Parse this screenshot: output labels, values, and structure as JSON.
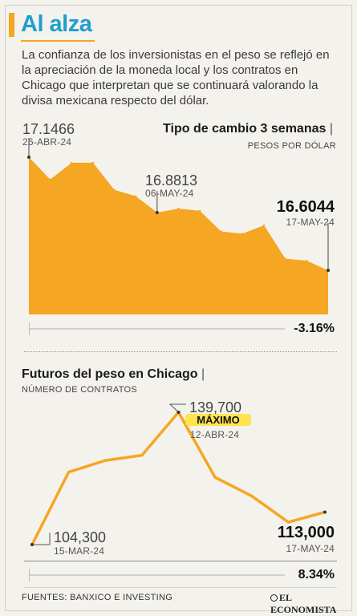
{
  "headline": "Al alza",
  "intro": "La confianza de los inversionistas en el peso se reflejó en la apreciación de la moneda local y los contratos en Chicago que interpretan que se continuará valorando la divisa mexicana respecto del dólar.",
  "colors": {
    "accent": "#f5a623",
    "headline": "#1e9fd0",
    "area": "#f5a623",
    "line": "#f5a623",
    "badge": "#ffe44d"
  },
  "exchange": {
    "title": "Tipo de cambio 3 semanas",
    "subtitle": "PESOS POR DÓLAR",
    "start_value": "17.1466",
    "start_date": "26-ABR-24",
    "mid_value": "16.8813",
    "mid_date": "06-MAY-24",
    "end_value": "16.6044",
    "end_date": "17-MAY-24",
    "change": "-3.16%"
  },
  "futures": {
    "title": "Futuros del peso en Chicago",
    "subtitle": "NÚMERO DE CONTRATOS",
    "start_value": "104,300",
    "start_date": "15-MAR-24",
    "max_value": "139,700",
    "max_label": "MÁXIMO",
    "max_date": "12-ABR-24",
    "end_value": "113,000",
    "end_date": "17-MAY-24",
    "change": "8.34%"
  },
  "sources": "FUENTES: BANXICO E INVESTING",
  "logo": "EL ECONOMISTA",
  "chart_data": [
    {
      "type": "area",
      "title": "Tipo de cambio 3 semanas",
      "ylabel": "PESOS POR DÓLAR",
      "x": [
        "26-ABR-24",
        "",
        "",
        "",
        "",
        "",
        "06-MAY-24",
        "",
        "",
        "",
        "",
        "",
        "",
        "",
        "17-MAY-24"
      ],
      "values": [
        17.1466,
        17.04,
        17.12,
        17.12,
        16.99,
        16.96,
        16.8813,
        16.9,
        16.89,
        16.79,
        16.78,
        16.82,
        16.66,
        16.65,
        16.6044
      ]
    },
    {
      "type": "line",
      "title": "Futuros del peso en Chicago",
      "ylabel": "NÚMERO DE CONTRATOS",
      "x": [
        "15-MAR-24",
        "",
        "",
        "",
        "12-ABR-24",
        "",
        "",
        "",
        "17-MAY-24"
      ],
      "values": [
        104300,
        123700,
        126800,
        128200,
        139700,
        122300,
        117300,
        110300,
        113000
      ]
    }
  ]
}
